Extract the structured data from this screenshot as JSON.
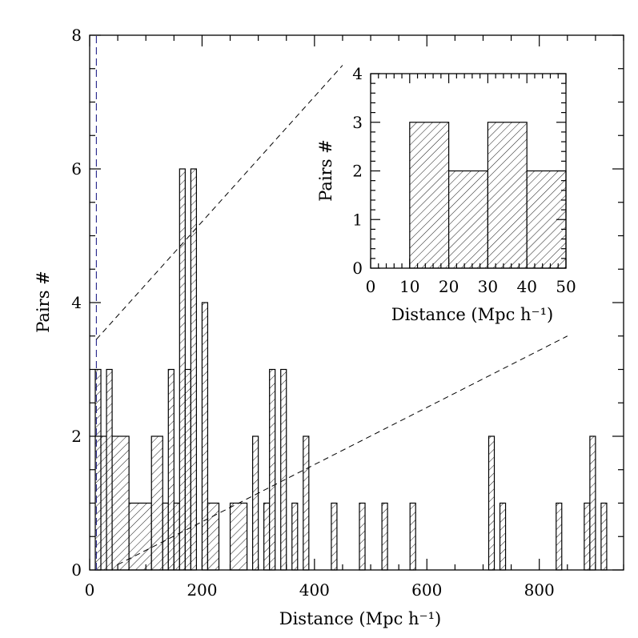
{
  "chart_data": [
    {
      "name": "main",
      "type": "bar",
      "subtype": "histogram",
      "xlabel": "Distance (Mpc h⁻¹)",
      "ylabel": "Pairs #",
      "xlim": [
        0,
        950
      ],
      "ylim": [
        0,
        8
      ],
      "xticks": [
        0,
        200,
        400,
        600,
        800
      ],
      "yticks": [
        0,
        2,
        4,
        6,
        8
      ],
      "bin_width": 10,
      "bins": [
        {
          "start": 10,
          "end": 20,
          "count": 3
        },
        {
          "start": 20,
          "end": 30,
          "count": 2
        },
        {
          "start": 30,
          "end": 40,
          "count": 3
        },
        {
          "start": 40,
          "end": 70,
          "count": 2
        },
        {
          "start": 70,
          "end": 110,
          "count": 1
        },
        {
          "start": 110,
          "end": 130,
          "count": 2
        },
        {
          "start": 130,
          "end": 140,
          "count": 1
        },
        {
          "start": 140,
          "end": 150,
          "count": 3
        },
        {
          "start": 150,
          "end": 160,
          "count": 1
        },
        {
          "start": 160,
          "end": 170,
          "count": 6
        },
        {
          "start": 170,
          "end": 180,
          "count": 3
        },
        {
          "start": 180,
          "end": 190,
          "count": 6
        },
        {
          "start": 200,
          "end": 210,
          "count": 4
        },
        {
          "start": 210,
          "end": 230,
          "count": 1
        },
        {
          "start": 250,
          "end": 280,
          "count": 1
        },
        {
          "start": 290,
          "end": 300,
          "count": 2
        },
        {
          "start": 310,
          "end": 320,
          "count": 1
        },
        {
          "start": 320,
          "end": 330,
          "count": 3
        },
        {
          "start": 340,
          "end": 350,
          "count": 3
        },
        {
          "start": 360,
          "end": 370,
          "count": 1
        },
        {
          "start": 380,
          "end": 390,
          "count": 2
        },
        {
          "start": 430,
          "end": 440,
          "count": 1
        },
        {
          "start": 480,
          "end": 490,
          "count": 1
        },
        {
          "start": 520,
          "end": 530,
          "count": 1
        },
        {
          "start": 570,
          "end": 580,
          "count": 1
        },
        {
          "start": 710,
          "end": 720,
          "count": 2
        },
        {
          "start": 730,
          "end": 740,
          "count": 1
        },
        {
          "start": 830,
          "end": 840,
          "count": 1
        },
        {
          "start": 880,
          "end": 890,
          "count": 1
        },
        {
          "start": 890,
          "end": 900,
          "count": 2
        },
        {
          "start": 910,
          "end": 920,
          "count": 1
        }
      ],
      "reference_line": {
        "x": 12,
        "style": "dashed",
        "color": "#303090"
      },
      "zoom_guides": [
        {
          "from": [
            12,
            3.45
          ],
          "to": [
            450,
            7.55
          ]
        },
        {
          "from": [
            50,
            0.08
          ],
          "to": [
            850,
            3.5
          ]
        }
      ]
    },
    {
      "name": "inset",
      "type": "bar",
      "subtype": "histogram",
      "xlabel": "Distance (Mpc h⁻¹)",
      "ylabel": "Pairs #",
      "xlim": [
        0,
        50
      ],
      "ylim": [
        0,
        4
      ],
      "xticks": [
        0,
        10,
        20,
        30,
        40,
        50
      ],
      "yticks": [
        0,
        1,
        2,
        3,
        4
      ],
      "bin_width": 10,
      "bins": [
        {
          "start": 10,
          "end": 20,
          "count": 3
        },
        {
          "start": 20,
          "end": 30,
          "count": 2
        },
        {
          "start": 30,
          "end": 40,
          "count": 3
        },
        {
          "start": 40,
          "end": 50,
          "count": 2
        }
      ]
    }
  ]
}
